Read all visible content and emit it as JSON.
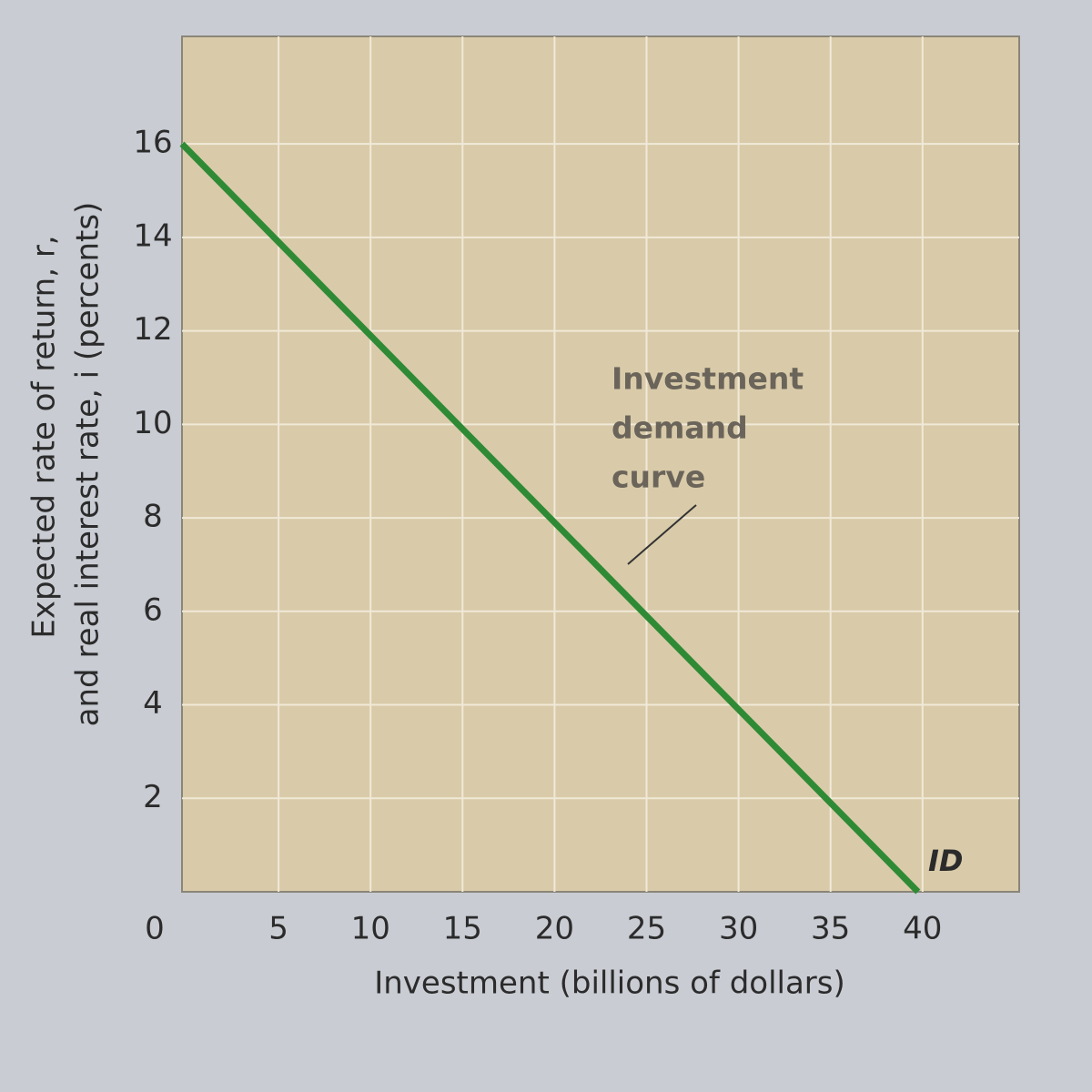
{
  "chart_data": {
    "type": "line",
    "xlabel": "Investment (billions of dollars)",
    "ylabel": [
      "Expected rate of return, r,",
      "and real interest rate, i (percents)"
    ],
    "annotation": [
      "Investment",
      "demand",
      "curve"
    ],
    "curve_label": "ID",
    "x": [
      0,
      40
    ],
    "series": [
      {
        "name": "ID",
        "color": "#2f8a35",
        "values": [
          16,
          0
        ]
      }
    ],
    "xlim": [
      0,
      45.5
    ],
    "ylim": [
      0,
      18.3
    ],
    "xticks": [
      0,
      5,
      10,
      15,
      20,
      25,
      30,
      35,
      40
    ],
    "yticks": [
      2,
      4,
      6,
      8,
      10,
      12,
      14,
      16
    ],
    "grid": true
  }
}
